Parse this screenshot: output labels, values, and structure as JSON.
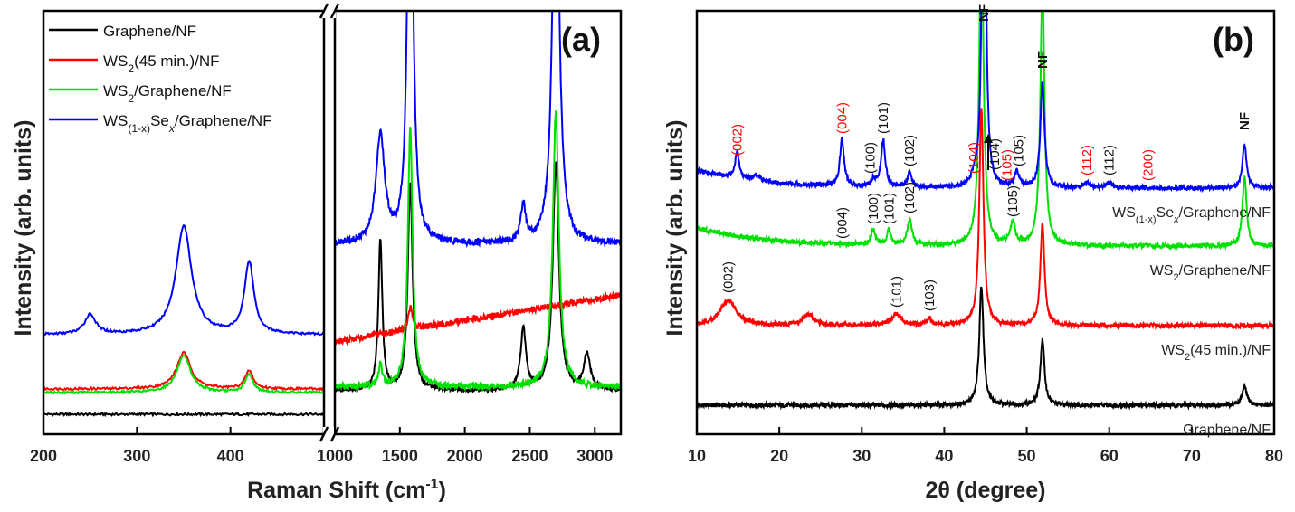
{
  "colors": {
    "graphene_nf": "#000000",
    "ws2_45_nf": "#ff0000",
    "ws2_graphene_nf": "#00e000",
    "wsse_graphene_nf": "#0000ff",
    "red_label": "#ff0000",
    "black_label": "#111111"
  },
  "chart_data": [
    {
      "type": "line",
      "panel_label": "(a)",
      "xlabel": "Raman Shift (cm",
      "xlabel_sup": "-1",
      "xlabel_close": ")",
      "ylabel": "Intensity (arb. units)",
      "x_break": true,
      "xlim_segment1": [
        200,
        500
      ],
      "xlim_segment2": [
        1000,
        3200
      ],
      "xticks": [
        200,
        300,
        400,
        1000,
        1500,
        2000,
        2500,
        3000
      ],
      "xtick_labels": [
        "200",
        "300",
        "400",
        "1000",
        "1500",
        "2000",
        "2500",
        "3000"
      ],
      "legend": [
        {
          "key": "graphene_nf",
          "parts": [
            [
              "Graphene/NF",
              ""
            ]
          ]
        },
        {
          "key": "ws2_45_nf",
          "parts": [
            [
              "WS",
              ""
            ],
            [
              "2",
              "sub"
            ],
            [
              "(45 min.)/NF",
              ""
            ]
          ]
        },
        {
          "key": "ws2_graphene_nf",
          "parts": [
            [
              "WS",
              ""
            ],
            [
              "2",
              "sub"
            ],
            [
              "/Graphene/NF",
              ""
            ]
          ]
        },
        {
          "key": "wsse_graphene_nf",
          "parts": [
            [
              "WS",
              ""
            ],
            [
              "(1-x)",
              "sub"
            ],
            [
              "Se",
              ""
            ],
            [
              "x",
              "subi"
            ],
            [
              "/Graphene/NF",
              ""
            ]
          ]
        }
      ],
      "series": [
        {
          "key": "graphene_nf",
          "name": "Graphene/NF",
          "baseline_low": 0.03,
          "baseline_high": 0.095,
          "peaks": [
            [
              1350,
              0.42,
              18
            ],
            [
              1580,
              0.57,
              22
            ],
            [
              2450,
              0.17,
              25
            ],
            [
              2700,
              0.63,
              28
            ],
            [
              2940,
              0.1,
              30
            ]
          ]
        },
        {
          "key": "ws2_45_nf",
          "name": "WS2(45 min.)/NF",
          "baseline_low": 0.1,
          "baseline_high": 0.23,
          "low_peaks": [
            [
              350,
              0.1,
              9
            ],
            [
              420,
              0.05,
              5
            ]
          ],
          "high_end": 0.36,
          "peaks": [
            [
              1580,
              0.06,
              20
            ]
          ]
        },
        {
          "key": "ws2_graphene_nf",
          "name": "WS2/Graphene/NF",
          "baseline_low": 0.09,
          "baseline_high": 0.105,
          "low_peaks": [
            [
              350,
              0.1,
              9
            ],
            [
              420,
              0.05,
              5
            ]
          ],
          "peaks": [
            [
              1350,
              0.06,
              18
            ],
            [
              1580,
              0.72,
              22
            ],
            [
              2700,
              0.76,
              28
            ]
          ]
        },
        {
          "key": "wsse_graphene_nf",
          "name": "WS(1-x)Sex/Graphene/NF",
          "baseline_low": 0.25,
          "baseline_high": 0.5,
          "low_peaks": [
            [
              250,
              0.055,
              7
            ],
            [
              350,
              0.3,
              10
            ],
            [
              420,
              0.2,
              6
            ]
          ],
          "peaks": [
            [
              1350,
              0.3,
              40
            ],
            [
              1580,
              1.5,
              22
            ],
            [
              2450,
              0.1,
              22
            ],
            [
              2700,
              1.3,
              28
            ]
          ]
        }
      ]
    },
    {
      "type": "line",
      "panel_label": "(b)",
      "xlabel": "2θ (degree)",
      "ylabel": "Intensity (arb. units)",
      "xlim": [
        10,
        80
      ],
      "xticks": [
        10,
        20,
        30,
        40,
        50,
        60,
        70,
        80
      ],
      "xtick_labels": [
        "10",
        "20",
        "30",
        "40",
        "50",
        "60",
        "70",
        "80"
      ],
      "series": [
        {
          "key": "graphene_nf",
          "name": "Graphene/NF",
          "label": "Graphene/NF",
          "offset": 0.08,
          "peaks": [
            [
              44.5,
              0.33,
              0.3
            ],
            [
              51.9,
              0.18,
              0.3
            ],
            [
              76.4,
              0.05,
              0.35
            ]
          ]
        },
        {
          "key": "ws2_45_nf",
          "name": "WS2(45 min.)/NF",
          "label_parts": [
            [
              "WS",
              ""
            ],
            [
              "2",
              "sub"
            ],
            [
              "(45 min.)/NF",
              ""
            ]
          ],
          "offset": 0.3,
          "peaks": [
            [
              13.8,
              0.07,
              1.2
            ],
            [
              23.5,
              0.03,
              0.8
            ],
            [
              34.2,
              0.03,
              0.8
            ],
            [
              38.2,
              0.02,
              0.3
            ],
            [
              44.5,
              0.6,
              0.3
            ],
            [
              51.9,
              0.28,
              0.3
            ]
          ]
        },
        {
          "key": "ws2_graphene_nf",
          "name": "WS2/Graphene/NF",
          "label_parts": [
            [
              "WS",
              ""
            ],
            [
              "2",
              "sub"
            ],
            [
              "/Graphene/NF",
              ""
            ]
          ],
          "offset": 0.52,
          "peaks": [
            [
              31.4,
              0.04,
              0.3
            ],
            [
              33.3,
              0.04,
              0.3
            ],
            [
              35.8,
              0.07,
              0.35
            ],
            [
              44.5,
              0.9,
              0.3
            ],
            [
              48.3,
              0.06,
              0.35
            ],
            [
              51.9,
              0.72,
              0.3
            ],
            [
              76.4,
              0.19,
              0.3
            ]
          ]
        },
        {
          "key": "wsse_graphene_nf",
          "name": "WS(1-x)Sex/Graphene/NF",
          "label_parts": [
            [
              "WS",
              ""
            ],
            [
              "(1-x)",
              "sub"
            ],
            [
              "Se",
              ""
            ],
            [
              "x",
              "subi"
            ],
            [
              "/Graphene/NF",
              ""
            ]
          ],
          "offset": 0.68,
          "peaks": [
            [
              14.9,
              0.07,
              0.3
            ],
            [
              17.2,
              0.015,
              0.5
            ],
            [
              27.6,
              0.13,
              0.3
            ],
            [
              31.4,
              0.02,
              0.3
            ],
            [
              32.6,
              0.13,
              0.3
            ],
            [
              35.8,
              0.04,
              0.3
            ],
            [
              43.6,
              0.02,
              0.3
            ],
            [
              44.8,
              1.5,
              0.22
            ],
            [
              48.8,
              0.04,
              0.35
            ],
            [
              51.9,
              0.29,
              0.3
            ],
            [
              57.3,
              0.015,
              0.4
            ],
            [
              60,
              0.015,
              0.4
            ],
            [
              76.4,
              0.12,
              0.3
            ]
          ]
        }
      ],
      "annotations": [
        {
          "text": "(002)",
          "x": 14.9,
          "curve": "wsse_graphene_nf",
          "color": "red"
        },
        {
          "text": "(004)",
          "x": 27.6,
          "curve": "wsse_graphene_nf",
          "color": "red"
        },
        {
          "text": "(101)",
          "x": 32.6,
          "curve": "wsse_graphene_nf",
          "color": "black"
        },
        {
          "text": "(100)",
          "x": 31.0,
          "curve": "wsse_graphene_nf",
          "color": "black"
        },
        {
          "text": "(102)",
          "x": 35.8,
          "curve": "wsse_graphene_nf",
          "color": "black"
        },
        {
          "text": "(104)",
          "x": 43.6,
          "curve": "wsse_graphene_nf",
          "color": "red"
        },
        {
          "text": "(104)",
          "x": 46.1,
          "curve": "wsse_graphene_nf",
          "color": "black",
          "arrow": true
        },
        {
          "text": "(105)",
          "x": 47.6,
          "curve": "wsse_graphene_nf",
          "color": "red"
        },
        {
          "text": "(105)",
          "x": 49.0,
          "curve": "wsse_graphene_nf",
          "color": "black"
        },
        {
          "text": "NF",
          "x": 44.8,
          "curve": "wsse_graphene_nf",
          "color": "black",
          "bold": true
        },
        {
          "text": "NF",
          "x": 51.9,
          "curve": "wsse_graphene_nf",
          "color": "black",
          "bold": true
        },
        {
          "text": "(112)",
          "x": 57.3,
          "curve": "wsse_graphene_nf",
          "color": "red"
        },
        {
          "text": "(112)",
          "x": 60.0,
          "curve": "wsse_graphene_nf",
          "color": "black"
        },
        {
          "text": "(200)",
          "x": 64.7,
          "curve": "wsse_graphene_nf",
          "color": "red"
        },
        {
          "text": "NF",
          "x": 76.4,
          "curve": "wsse_graphene_nf",
          "color": "black",
          "bold": true
        },
        {
          "text": "(004)",
          "x": 27.6,
          "curve": "ws2_graphene_nf",
          "color": "black"
        },
        {
          "text": "(100)",
          "x": 31.4,
          "curve": "ws2_graphene_nf",
          "color": "black"
        },
        {
          "text": "(101)",
          "x": 33.3,
          "curve": "ws2_graphene_nf",
          "color": "black"
        },
        {
          "text": "(102)",
          "x": 35.8,
          "curve": "ws2_graphene_nf",
          "color": "black"
        },
        {
          "text": "(105)",
          "x": 48.3,
          "curve": "ws2_graphene_nf",
          "color": "black"
        },
        {
          "text": "(002)",
          "x": 13.8,
          "curve": "ws2_45_nf",
          "color": "black"
        },
        {
          "text": "(101)",
          "x": 34.2,
          "curve": "ws2_45_nf",
          "color": "black"
        },
        {
          "text": "(103)",
          "x": 38.2,
          "curve": "ws2_45_nf",
          "color": "black"
        }
      ]
    }
  ]
}
